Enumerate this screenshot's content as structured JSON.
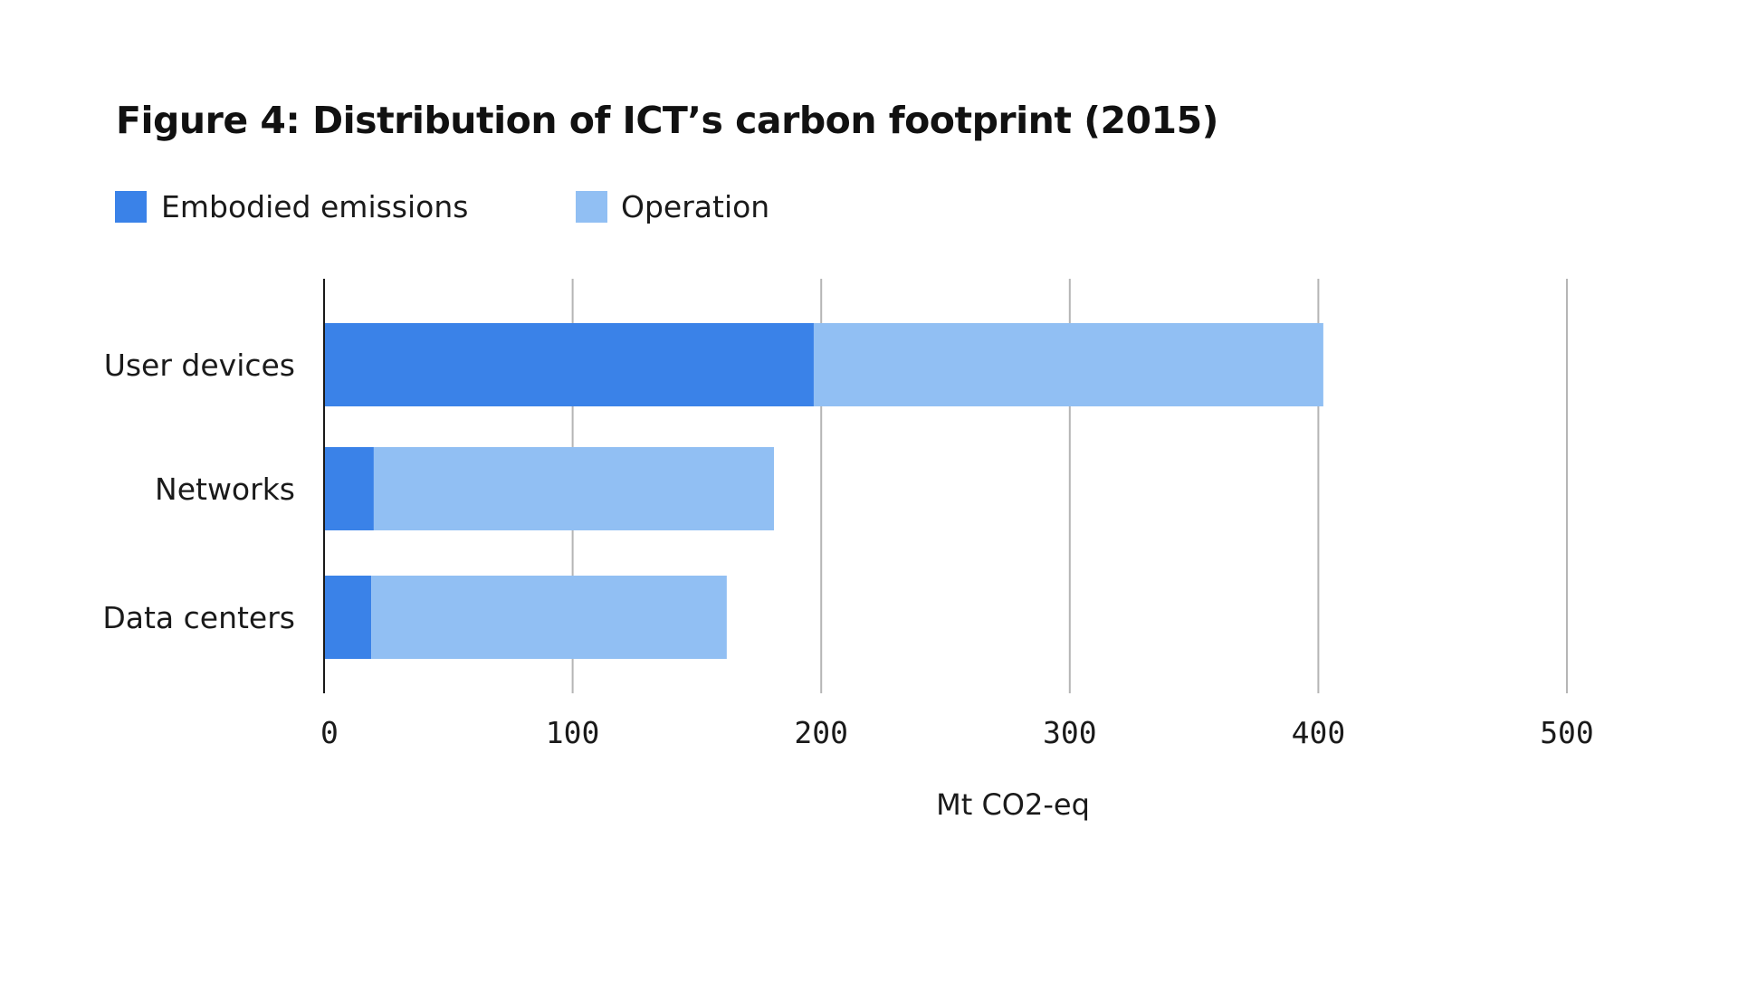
{
  "chart_data": {
    "type": "bar",
    "orientation": "horizontal",
    "stacked": true,
    "title": "Figure 4: Distribution of ICT’s carbon footprint (2015)",
    "xlabel": "Mt CO2-eq",
    "ylabel": "",
    "categories": [
      "User devices",
      "Networks",
      "Data centers"
    ],
    "series": [
      {
        "name": "Embodied emissions",
        "color": "#3a82e8",
        "values": [
          197,
          20,
          19
        ]
      },
      {
        "name": "Operation",
        "color": "#91bff3",
        "values": [
          205,
          161,
          143
        ]
      }
    ],
    "xlim": [
      0,
      500
    ],
    "xticks": [
      "0",
      "100",
      "200",
      "300",
      "400",
      "500"
    ],
    "xtick_values": [
      0,
      100,
      200,
      300,
      400,
      500
    ],
    "grid": true,
    "legend_position": "top-left"
  }
}
